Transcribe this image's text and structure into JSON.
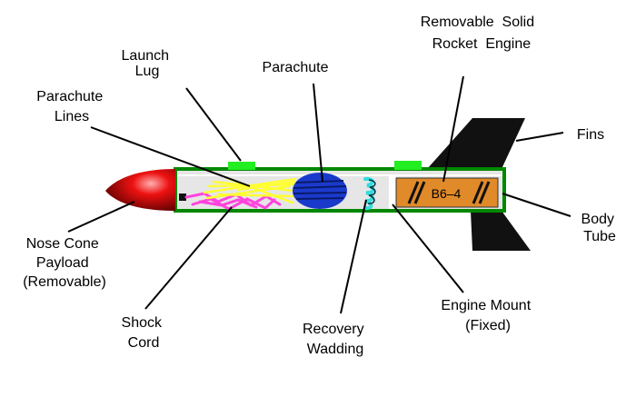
{
  "labels": {
    "launch_lug": [
      "Launch",
      "Lug"
    ],
    "parachute": [
      "Parachute"
    ],
    "removable_engine": [
      "Removable  Solid",
      "Rocket  Engine"
    ],
    "parachute_lines": [
      "Parachute",
      "Lines"
    ],
    "fins": [
      "Fins"
    ],
    "body_tube": [
      "Body",
      "Tube"
    ],
    "nose_cone": [
      "Nose Cone",
      "Payload",
      "(Removable)"
    ],
    "shock_cord": [
      "Shock",
      "Cord"
    ],
    "recovery_wadding": [
      "Recovery",
      "Wadding"
    ],
    "engine_mount": [
      "Engine Mount",
      "(Fixed)"
    ]
  },
  "engine_code": "B6–4",
  "colors": {
    "body_outline": "#008800",
    "body_fill": "#e6e6e6",
    "launch_lug": "#22ee22",
    "nose_cone": "#cc0000",
    "parachute": "#1a3acc",
    "parachute_lines": "#ffff33",
    "shock_cord": "#ff44dd",
    "recovery_wadding": "#33dddd",
    "engine": "#e08a2a",
    "fins": "#111111"
  }
}
